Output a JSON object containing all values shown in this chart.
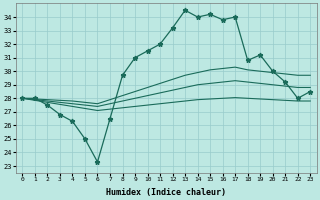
{
  "xlabel": "Humidex (Indice chaleur)",
  "bg_color": "#bde8e2",
  "line_color": "#1a6b5a",
  "grid_color": "#99cccc",
  "x_ticks": [
    0,
    1,
    2,
    3,
    4,
    5,
    6,
    7,
    8,
    9,
    10,
    11,
    12,
    13,
    14,
    15,
    16,
    17,
    18,
    19,
    20,
    21,
    22,
    23
  ],
  "y_ticks": [
    23,
    24,
    25,
    26,
    27,
    28,
    29,
    30,
    31,
    32,
    33,
    34
  ],
  "ylim": [
    22.5,
    35.0
  ],
  "xlim": [
    -0.5,
    23.5
  ],
  "series_main": [
    28.0,
    28.0,
    27.5,
    26.8,
    26.3,
    25.0,
    23.3,
    26.5,
    29.7,
    31.0,
    31.5,
    32.0,
    33.2,
    34.5,
    34.0,
    34.2,
    33.8,
    34.0,
    30.8,
    31.2,
    30.0,
    29.2,
    28.0,
    28.5
  ],
  "series_line1": [
    28.0,
    27.85,
    27.7,
    27.55,
    27.4,
    27.25,
    27.1,
    27.2,
    27.3,
    27.4,
    27.5,
    27.6,
    27.7,
    27.8,
    27.9,
    27.95,
    28.0,
    28.05,
    28.0,
    27.95,
    27.9,
    27.85,
    27.8,
    27.8
  ],
  "series_line2": [
    28.0,
    27.9,
    27.8,
    27.7,
    27.6,
    27.5,
    27.4,
    27.6,
    27.8,
    28.0,
    28.2,
    28.4,
    28.6,
    28.8,
    29.0,
    29.1,
    29.2,
    29.3,
    29.2,
    29.1,
    29.0,
    28.9,
    28.8,
    28.8
  ],
  "series_line3": [
    28.0,
    27.95,
    27.9,
    27.85,
    27.8,
    27.7,
    27.6,
    27.9,
    28.2,
    28.5,
    28.8,
    29.1,
    29.4,
    29.7,
    29.9,
    30.1,
    30.2,
    30.3,
    30.1,
    30.0,
    29.9,
    29.8,
    29.7,
    29.7
  ]
}
